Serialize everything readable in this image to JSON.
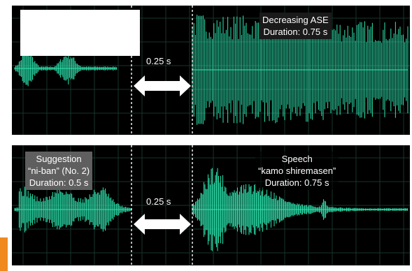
{
  "top": {
    "interval_label": "0.25 s",
    "right_caption": {
      "line1": "Decreasing ASE",
      "line2": "Duration: 0.75 s"
    }
  },
  "bottom": {
    "interval_label": "0.25 s",
    "left_caption": {
      "line1": "Suggestion",
      "line2": "“ni-ban” (No. 2)",
      "line3": "Duration: 0.5 s"
    },
    "right_caption": {
      "line1": "Speech",
      "line2": "“kamo shiremasen”",
      "line3": "Duration: 0.75 s"
    }
  },
  "colors": {
    "waveform": "#2ee6b0",
    "grid": "#17342d",
    "background": "#000000",
    "caption_box": "#5f5f5f"
  }
}
